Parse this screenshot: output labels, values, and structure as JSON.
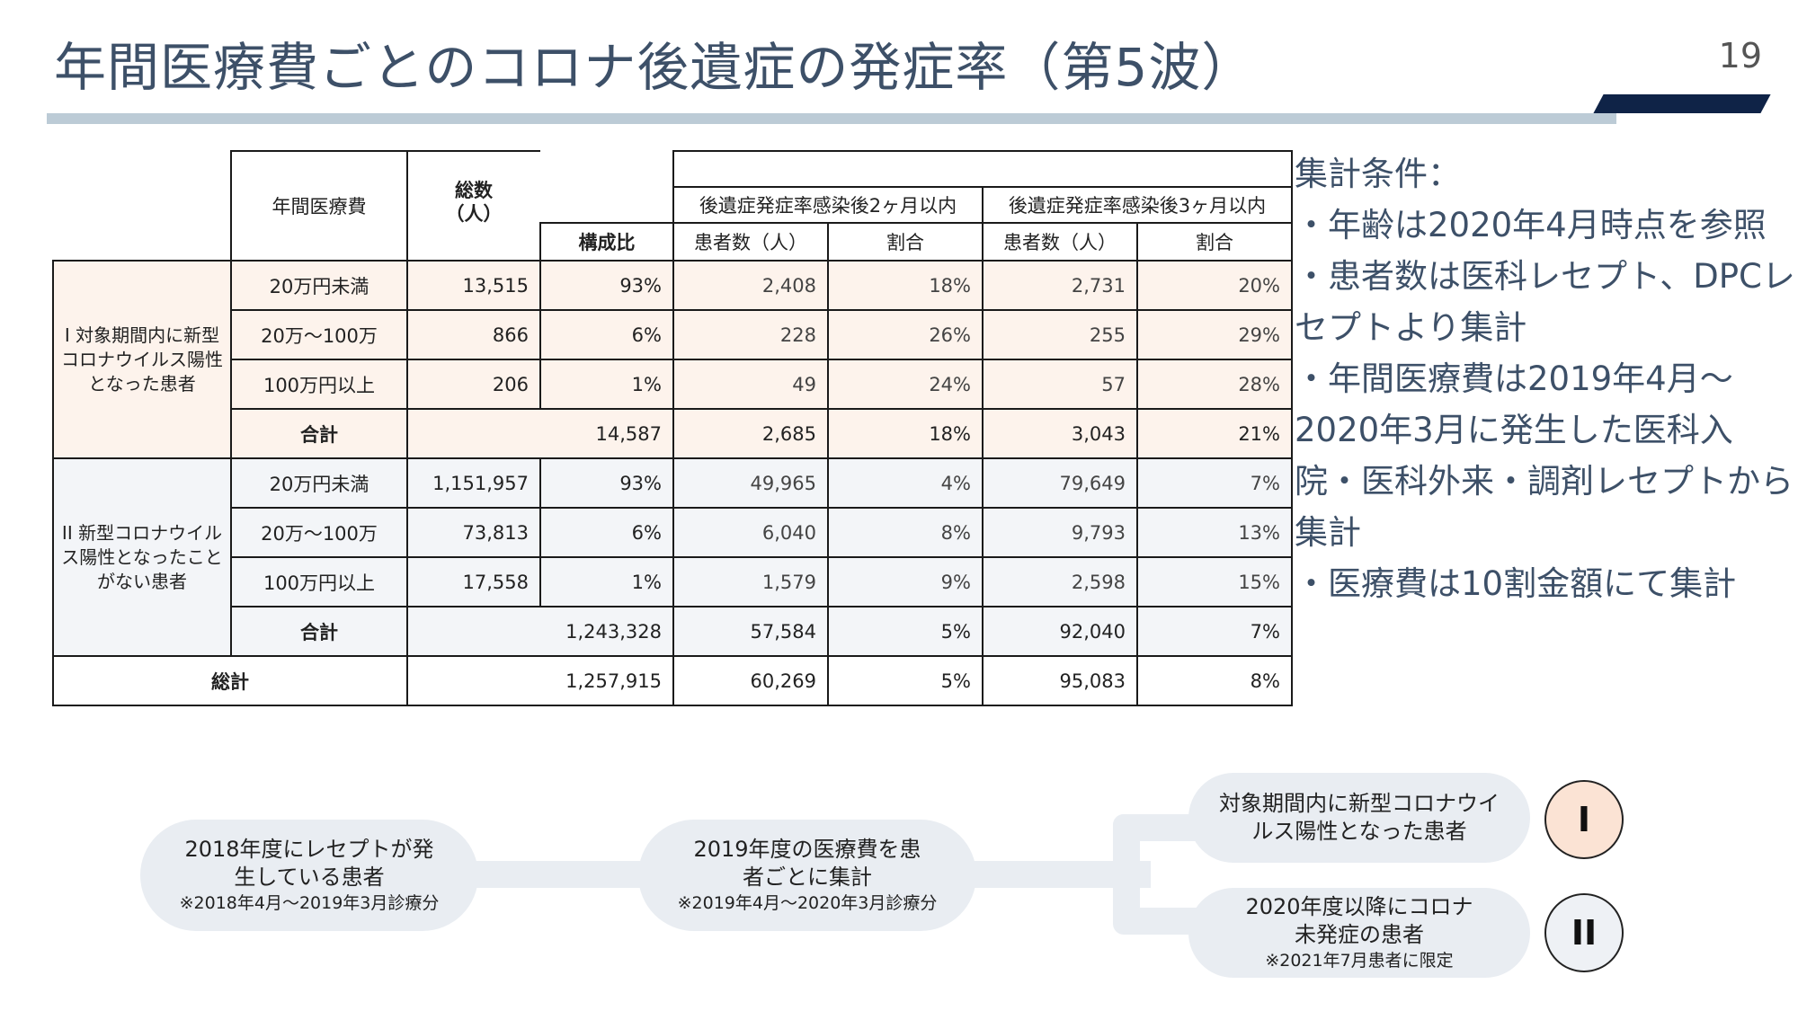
{
  "slide": {
    "title": "年間医療費ごとのコロナ後遺症の発症率（第5波）",
    "page_number": "19"
  },
  "table": {
    "headers": {
      "annual_medical_cost": "年間医療費",
      "total_count": "総数\n（人）",
      "composition_ratio": "構成比",
      "group_2m": "後遺症発症率感染後2ヶ月以内",
      "group_3m": "後遺症発症率感染後3ヶ月以内",
      "patients": "患者数（人）",
      "rate": "割合"
    },
    "group1": {
      "label": "I\n対象期間内に新型コロナウイルス陽性となった患者",
      "rows": [
        {
          "cost": "20万円未満",
          "total": "13,515",
          "ratio": "93%",
          "p2": "2,408",
          "r2": "18%",
          "p3": "2,731",
          "r3": "20%"
        },
        {
          "cost": "20万〜100万",
          "total": "866",
          "ratio": "6%",
          "p2": "228",
          "r2": "26%",
          "p3": "255",
          "r3": "29%"
        },
        {
          "cost": "100万円以上",
          "total": "206",
          "ratio": "1%",
          "p2": "49",
          "r2": "24%",
          "p3": "57",
          "r3": "28%"
        }
      ],
      "subtotal": {
        "label": "合計",
        "total": "14,587",
        "p2": "2,685",
        "r2": "18%",
        "p3": "3,043",
        "r3": "21%"
      }
    },
    "group2": {
      "label": "II\n新型コロナウイルス陽性となったことがない患者",
      "rows": [
        {
          "cost": "20万円未満",
          "total": "1,151,957",
          "ratio": "93%",
          "p2": "49,965",
          "r2": "4%",
          "p3": "79,649",
          "r3": "7%"
        },
        {
          "cost": "20万〜100万",
          "total": "73,813",
          "ratio": "6%",
          "p2": "6,040",
          "r2": "8%",
          "p3": "9,793",
          "r3": "13%"
        },
        {
          "cost": "100万円以上",
          "total": "17,558",
          "ratio": "1%",
          "p2": "1,579",
          "r2": "9%",
          "p3": "2,598",
          "r3": "15%"
        }
      ],
      "subtotal": {
        "label": "合計",
        "total": "1,243,328",
        "p2": "57,584",
        "r2": "5%",
        "p3": "92,040",
        "r3": "7%"
      }
    },
    "grand_total": {
      "label": "総計",
      "total": "1,257,915",
      "p2": "60,269",
      "r2": "5%",
      "p3": "95,083",
      "r3": "8%"
    }
  },
  "notes": {
    "heading": "集計条件：",
    "items": [
      "・年齢は2020年4月時点を参照",
      "・患者数は医科レセプト、DPCレセプトより集計",
      "・年間医療費は2019年4月〜2020年3月に発生した医科入院・医科外来・調剤レセプトから集計",
      "・医療費は10割金額にて集計"
    ]
  },
  "flow": {
    "step1": {
      "main": "2018年度にレセプトが発生している患者",
      "sub": "※2018年4月〜2019年3月診療分"
    },
    "step2": {
      "main": "2019年度の医療費を患者ごとに集計",
      "sub": "※2019年4月〜2020年3月診療分"
    },
    "branch1": {
      "main": "対象期間内に新型コロナウイルス陽性となった患者",
      "marker": "I"
    },
    "branch2": {
      "main": "2020年度以降にコロナ未発症の患者",
      "sub": "※2021年7月患者に限定",
      "marker": "II"
    }
  }
}
